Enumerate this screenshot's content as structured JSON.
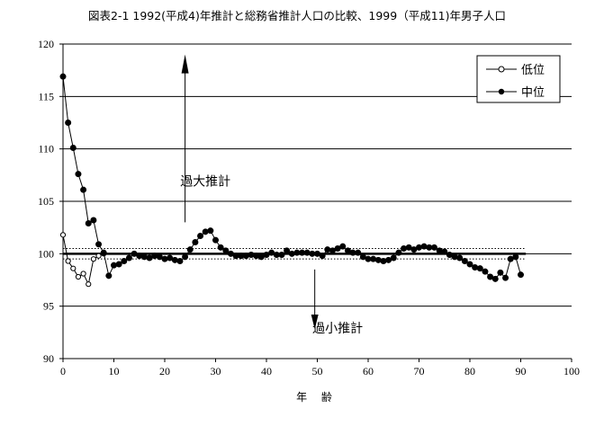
{
  "chart_data": {
    "type": "line",
    "title": "図表2-1  1992(平成4)年推計と総務省推計人口の比較、1999（平成11)年男子人口",
    "xlabel": "年 齢",
    "ylabel": "",
    "xlim": [
      0,
      100
    ],
    "ylim": [
      90,
      120
    ],
    "xticks": [
      0,
      10,
      20,
      30,
      40,
      50,
      60,
      70,
      80,
      90,
      100
    ],
    "yticks": [
      90,
      95,
      100,
      105,
      110,
      115,
      120
    ],
    "grid": "horizontal",
    "legend_position": "top-right",
    "reference_line": 100,
    "band": [
      99.5,
      100.5
    ],
    "annotations": [
      {
        "text": "過大推計",
        "x": 28,
        "y": 106.5
      },
      {
        "text": "過小推計",
        "x": 54,
        "y": 92.5
      }
    ],
    "series": [
      {
        "name": "低位",
        "marker": "open-circle",
        "x": [
          0,
          1,
          2,
          3,
          4,
          5,
          6,
          7,
          8
        ],
        "y": [
          101.8,
          99.3,
          98.6,
          97.8,
          98.1,
          97.1,
          99.5,
          99.8,
          100.0
        ]
      },
      {
        "name": "中位",
        "marker": "filled-circle",
        "x": [
          0,
          1,
          2,
          3,
          4,
          5,
          6,
          7,
          8,
          9,
          10,
          11,
          12,
          13,
          14,
          15,
          16,
          17,
          18,
          19,
          20,
          21,
          22,
          23,
          24,
          25,
          26,
          27,
          28,
          29,
          30,
          31,
          32,
          33,
          34,
          35,
          36,
          37,
          38,
          39,
          40,
          41,
          42,
          43,
          44,
          45,
          46,
          47,
          48,
          49,
          50,
          51,
          52,
          53,
          54,
          55,
          56,
          57,
          58,
          59,
          60,
          61,
          62,
          63,
          64,
          65,
          66,
          67,
          68,
          69,
          70,
          71,
          72,
          73,
          74,
          75,
          76,
          77,
          78,
          79,
          80,
          81,
          82,
          83,
          84,
          85,
          86,
          87,
          88,
          89,
          90
        ],
        "y": [
          116.9,
          112.5,
          110.1,
          107.6,
          106.1,
          102.9,
          103.2,
          100.9,
          100.1,
          97.9,
          98.9,
          99.0,
          99.3,
          99.6,
          100.0,
          99.8,
          99.7,
          99.6,
          99.8,
          99.7,
          99.5,
          99.6,
          99.4,
          99.3,
          99.7,
          100.4,
          101.1,
          101.7,
          102.1,
          102.2,
          101.3,
          100.6,
          100.3,
          100.0,
          99.8,
          99.8,
          99.8,
          99.9,
          99.8,
          99.7,
          99.9,
          100.1,
          99.9,
          99.9,
          100.3,
          100.0,
          100.1,
          100.1,
          100.1,
          100.0,
          100.0,
          99.8,
          100.4,
          100.3,
          100.5,
          100.7,
          100.3,
          100.1,
          100.1,
          99.7,
          99.5,
          99.5,
          99.4,
          99.3,
          99.4,
          99.6,
          100.1,
          100.5,
          100.6,
          100.4,
          100.6,
          100.7,
          100.6,
          100.6,
          100.3,
          100.2,
          99.9,
          99.7,
          99.6,
          99.3,
          99.0,
          98.7,
          98.6,
          98.3,
          97.8,
          97.6,
          98.2,
          97.7,
          99.5,
          99.7,
          98.0
        ]
      }
    ]
  }
}
